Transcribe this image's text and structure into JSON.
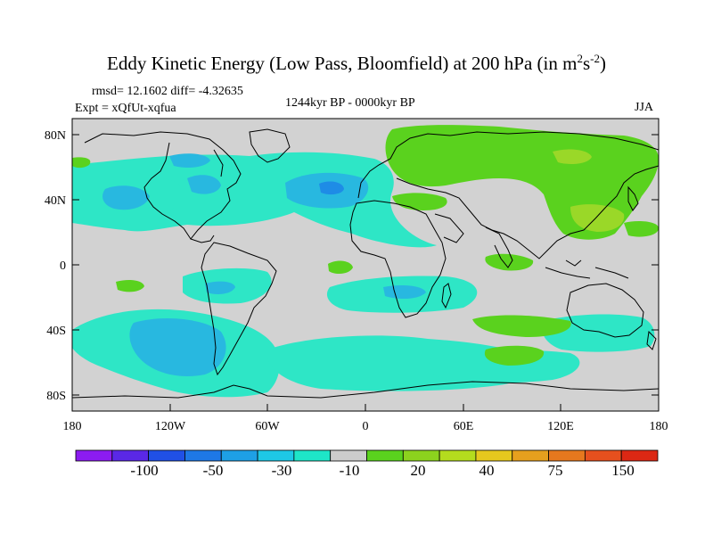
{
  "title": {
    "main": "Eddy Kinetic Energy (Low Pass, Bloomfield) at 200 hPa (in m",
    "sup1": "2",
    "mid": "s",
    "sup2": "-2",
    "close": ")"
  },
  "stats": "rmsd= 12.1602 diff= -4.32635",
  "expt": "Expt = xQfUt-xqfua",
  "period": "1244kyr BP - 0000kyr BP",
  "season": "JJA",
  "lat_labels": [
    "80N",
    "40N",
    "0",
    "40S",
    "80S"
  ],
  "lon_labels": [
    "180",
    "120W",
    "60W",
    "0",
    "60E",
    "120E",
    "180"
  ],
  "colorbar": {
    "colors": [
      "#8c1cf0",
      "#5a28e6",
      "#2050e6",
      "#1e78e6",
      "#1ea0e6",
      "#1ec8e6",
      "#1ee6c8",
      "#cccccc",
      "#5ad21e",
      "#8cd21e",
      "#b4dc1e",
      "#e6c81e",
      "#e6a01e",
      "#e6781e",
      "#e6501e",
      "#dc2814"
    ],
    "labels": [
      "-100",
      "-50",
      "-30",
      "-10",
      "20",
      "40",
      "75",
      "150"
    ]
  },
  "colors": {
    "land_ocean_bg": "#d2d2d2",
    "cyan": "#2ee6c6",
    "light_blue": "#28b8e0",
    "mid_blue": "#1e8ce6",
    "green": "#5ad21e",
    "yellow_green": "#9ad828"
  }
}
